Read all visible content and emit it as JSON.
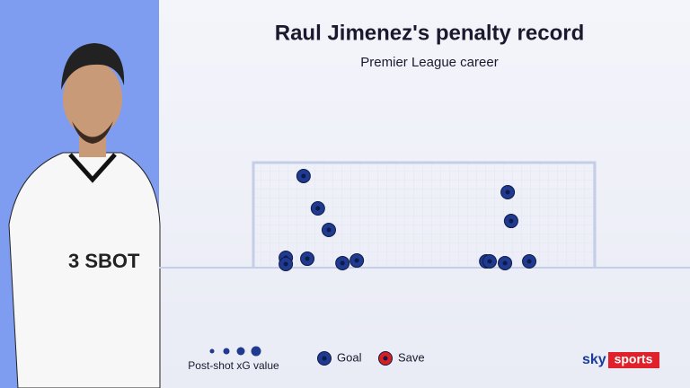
{
  "chart_data": {
    "type": "scatter",
    "title": "Raul Jimenez's penalty record",
    "subtitle": "Premier League career",
    "size_legend": "Post-shot xG value",
    "xlim": [
      0,
      100
    ],
    "ylim": [
      0,
      100
    ],
    "series": [
      {
        "name": "Goal",
        "color": "#1f3a8f",
        "x": [
          14.7,
          18.9,
          22.1,
          9.5,
          9.5,
          15.8,
          26.1,
          30.3,
          74.5,
          75.5,
          68.2,
          69.2,
          73.7,
          80.8
        ],
        "values": [
          87.2,
          56.4,
          35.9,
          9.4,
          3.4,
          8.5,
          4.3,
          6.8,
          71.8,
          44.4,
          6.0,
          6.0,
          4.3,
          6.0
        ]
      },
      {
        "name": "Save",
        "color": "#d42020",
        "x": [],
        "values": []
      }
    ],
    "brand": [
      "sky",
      "sports"
    ]
  }
}
